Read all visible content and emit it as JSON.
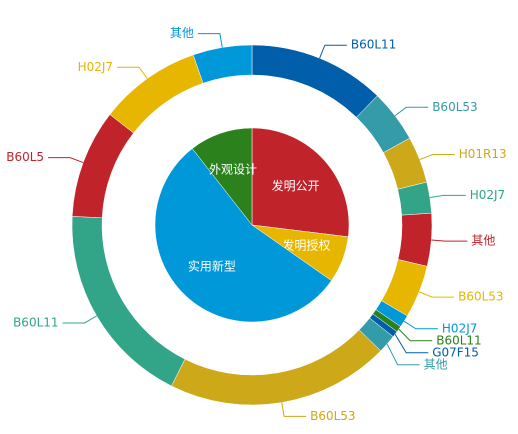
{
  "chart_data": {
    "type": "nested_pie",
    "rings": [
      {
        "categories": [
          "发明公开",
          "发明授权",
          "实用新型",
          "外观设计"
        ],
        "values": [
          97,
          28,
          197,
          38
        ],
        "colors": [
          "#c1232b",
          "#e6b600",
          "#0098d9",
          "#2b821d"
        ]
      },
      {
        "categories": [
          "B60L11",
          "B60L53",
          "H01R13",
          "H02J7",
          "其他",
          "B60L53",
          "H02J7",
          "B60L11",
          "G07F15",
          "其他",
          "B60L53",
          "B60L11",
          "B60L5",
          "H02J7",
          "其他"
        ],
        "values": [
          44,
          17,
          15,
          10,
          17,
          17,
          4,
          2,
          2,
          6,
          72,
          66,
          35,
          33,
          19
        ],
        "colors": [
          "#005eaa",
          "#339ca8",
          "#cda819",
          "#32a487",
          "#c1232b",
          "#e6b600",
          "#0098d9",
          "#2b821d",
          "#005eaa",
          "#339ca8",
          "#cda819",
          "#32a487",
          "#c1232b",
          "#e6b600",
          "#0098d9"
        ]
      }
    ]
  }
}
